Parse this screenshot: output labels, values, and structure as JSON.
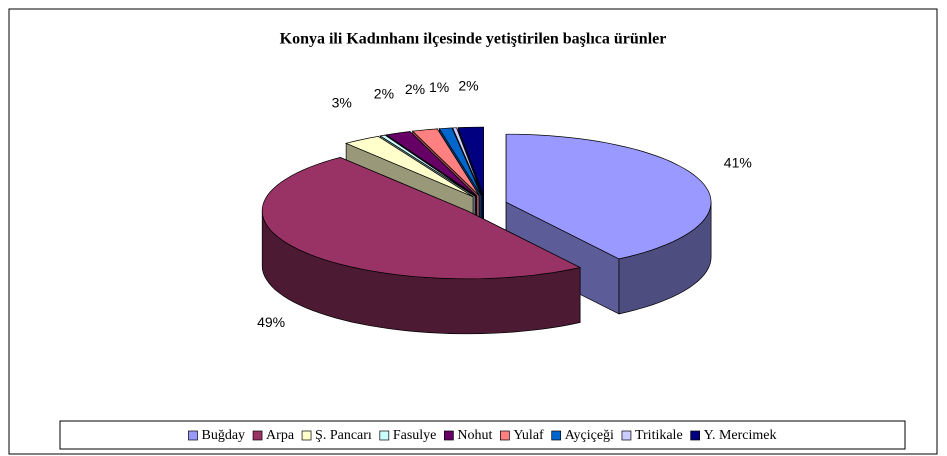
{
  "chart_data": {
    "type": "pie",
    "title": "Konya ili Kadınhanı ilçesinde yetiştirilen başlıca ürünler",
    "categories": [
      "Buğday",
      "Arpa",
      "Ş. Pancarı",
      "Fasulye",
      "Nohut",
      "Yulaf",
      "Ayçiçeği",
      "Tritikale",
      "Y. Mercimek"
    ],
    "values": [
      41,
      49,
      3,
      0.4,
      2,
      2,
      1,
      0.3,
      2
    ],
    "value_labels": [
      "41%",
      "49%",
      "3%",
      null,
      "2%",
      "2%",
      "1%",
      null,
      "2%"
    ],
    "colors": [
      "#9999ff",
      "#993366",
      "#ffffcc",
      "#ccffff",
      "#660066",
      "#ff8080",
      "#0066cc",
      "#ccccff",
      "#000080"
    ],
    "legend": "bottom"
  }
}
